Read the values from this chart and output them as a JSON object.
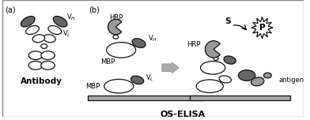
{
  "background_color": "#ffffff",
  "border_color": "#888888",
  "fig_width": 3.92,
  "fig_height": 1.52,
  "label_a": "(a)",
  "label_b": "(b)",
  "label_antibody": "Antibody",
  "label_os_elisa": "OS-ELISA",
  "label_vh": "V$_H$",
  "label_vl": "V$_L$",
  "label_mbp": "MBP",
  "label_hrp": "HRP",
  "label_antigen": "antigen",
  "label_s": "S",
  "label_p": "P",
  "dark_gray": "#666666",
  "mid_gray": "#999999",
  "light_gray": "#cccccc",
  "outline_color": "#111111",
  "plate_color": "#aaaaaa",
  "arrow_color": "#aaaaaa"
}
